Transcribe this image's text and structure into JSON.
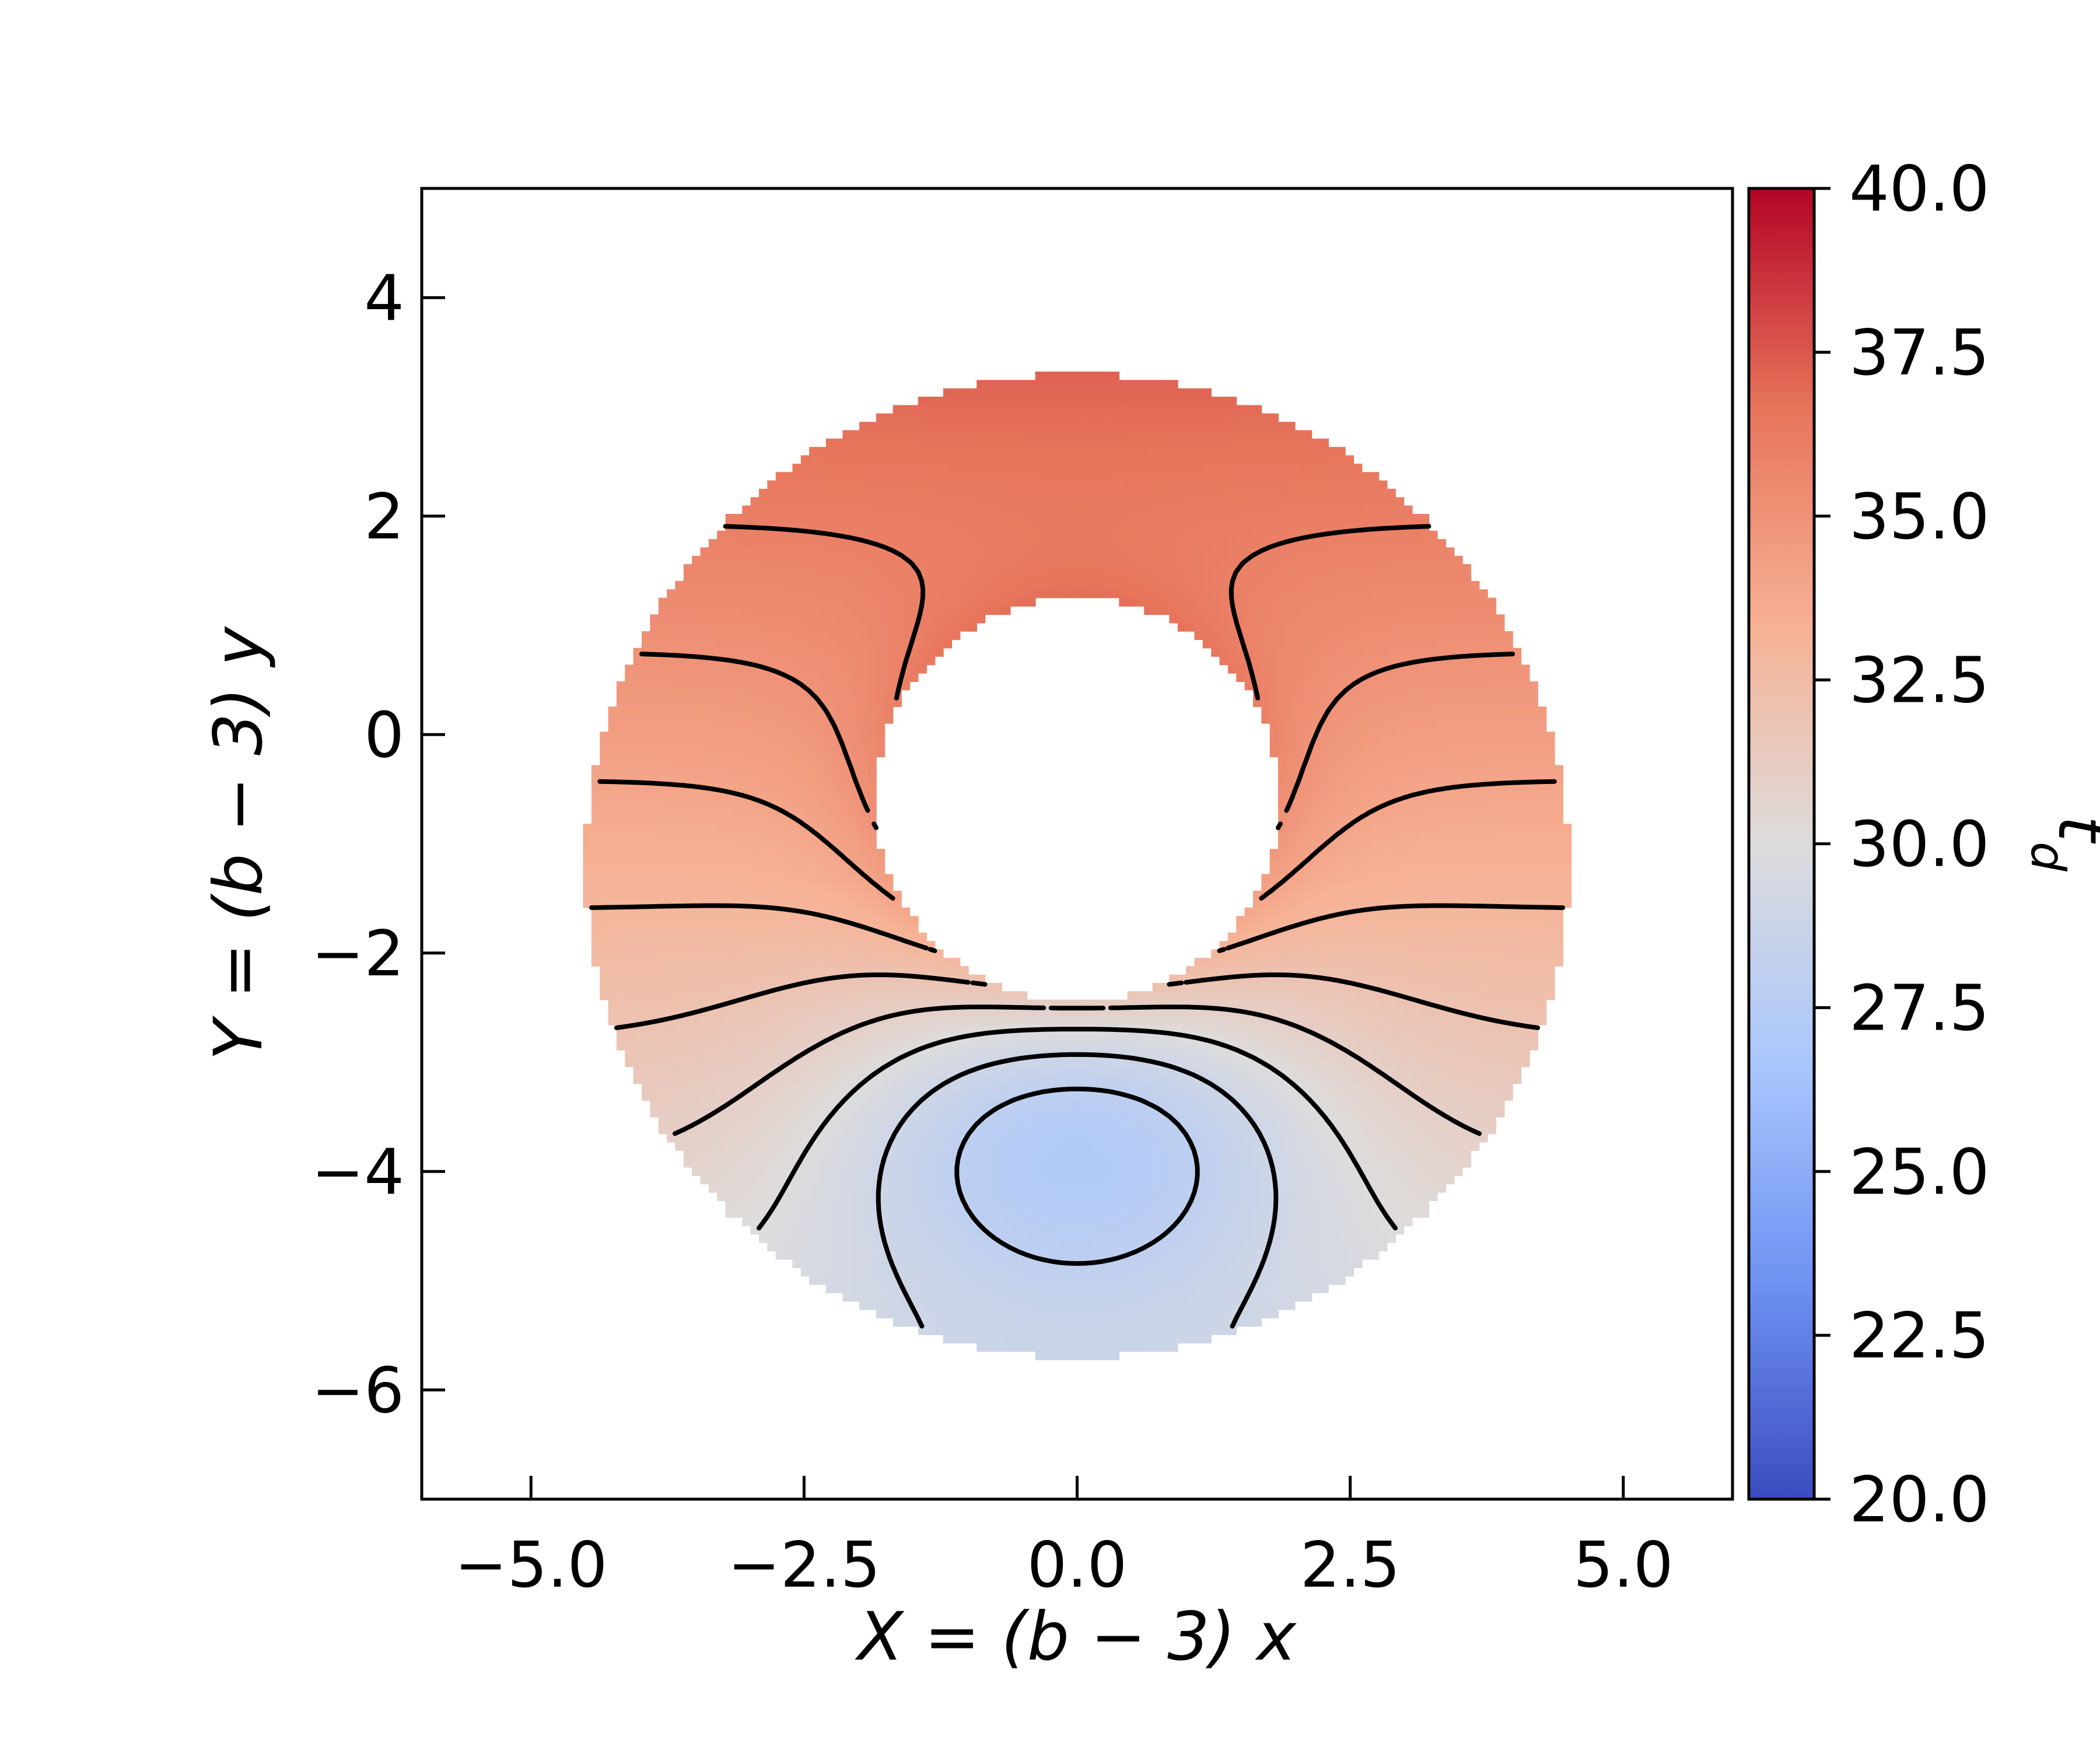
{
  "chart_data": {
    "type": "heatmap",
    "plot": "filled contour map with black contour lines over an annular region",
    "xlabel": "X = (b − 3) x",
    "ylabel": "Y = (b − 3) y",
    "xlim": [
      -6.0,
      6.0
    ],
    "ylim": [
      -7.0,
      5.0
    ],
    "xticks": [
      -5.0,
      -2.5,
      0.0,
      2.5,
      5.0
    ],
    "xtick_labels": [
      "−5.0",
      "−2.5",
      "0.0",
      "2.5",
      "5.0"
    ],
    "yticks": [
      4,
      2,
      0,
      -2,
      -4,
      -6
    ],
    "ytick_labels": [
      "4",
      "2",
      "0",
      "−2",
      "−4",
      "−6"
    ],
    "colorbar": {
      "label": "t_d",
      "colormap": "coolwarm",
      "range": [
        20.0,
        40.0
      ],
      "ticks": [
        20.0,
        22.5,
        25.0,
        27.5,
        30.0,
        32.5,
        35.0,
        37.5,
        40.0
      ],
      "tick_labels": [
        "20.0",
        "22.5",
        "25.0",
        "27.5",
        "30.0",
        "32.5",
        "35.0",
        "37.5",
        "40.0"
      ],
      "colors": [
        "#3b4cc0",
        "#6f92f3",
        "#aac7fd",
        "#dddcdc",
        "#f7b194",
        "#e7745b",
        "#b40426"
      ]
    },
    "region": {
      "outer_boundary": {
        "center": [
          0.0,
          -1.2
        ],
        "radius": 4.5
      },
      "inner_hole": {
        "center": [
          0.0,
          -0.6
        ],
        "radius": 1.85
      }
    },
    "field": {
      "top_value": 37.0,
      "bottom_value": 29.5,
      "minimum_value": 26.6,
      "minimum_location": [
        0.0,
        -3.6
      ],
      "inner_edge_value": 33.0
    },
    "grid": false
  }
}
